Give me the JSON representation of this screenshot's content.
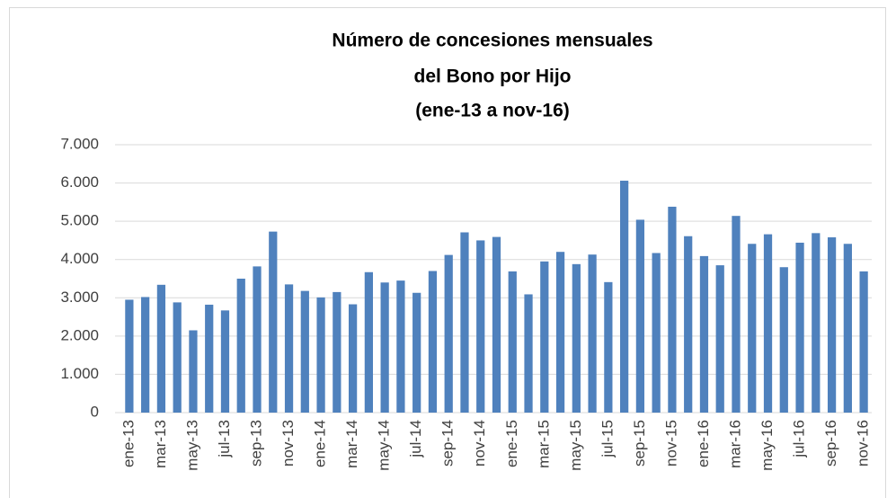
{
  "chart_data": {
    "type": "bar",
    "title": [
      "Número de concesiones mensuales",
      "del Bono por Hijo",
      "(ene-13 a nov-16)"
    ],
    "categories": [
      "ene-13",
      null,
      "mar-13",
      null,
      "may-13",
      null,
      "jul-13",
      null,
      "sep-13",
      null,
      "nov-13",
      null,
      "ene-14",
      null,
      "mar-14",
      null,
      "may-14",
      null,
      "jul-14",
      null,
      "sep-14",
      null,
      "nov-14",
      null,
      "ene-15",
      null,
      "mar-15",
      null,
      "may-15",
      null,
      "jul-15",
      null,
      "sep-15",
      null,
      "nov-15",
      null,
      "ene-16",
      null,
      "mar-16",
      null,
      "may-16",
      null,
      "jul-16",
      null,
      "sep-16",
      null,
      "nov-16"
    ],
    "values": [
      2950,
      3020,
      3340,
      2880,
      2150,
      2820,
      2670,
      3500,
      3820,
      4730,
      3350,
      3180,
      3010,
      3150,
      2830,
      3670,
      3400,
      3450,
      3130,
      3700,
      4120,
      4710,
      4500,
      4590,
      3690,
      3090,
      3950,
      4200,
      3880,
      4130,
      3410,
      6060,
      5040,
      4170,
      5380,
      4610,
      4090,
      3850,
      5140,
      4410,
      4660,
      3800,
      4440,
      4690,
      4580,
      4410,
      3690
    ],
    "color": "#4f81bd",
    "ylim": [
      0,
      7000
    ],
    "yticks": [
      0,
      {
        "value": 1000,
        "label": "1.000"
      },
      {
        "value": 2000,
        "label": "2.000"
      },
      {
        "value": 3000,
        "label": "3.000"
      },
      {
        "value": 4000,
        "label": "4.000"
      },
      {
        "value": 5000,
        "label": "5.000"
      },
      {
        "value": 6000,
        "label": "6.000"
      },
      {
        "value": 7000,
        "label": "7.000"
      }
    ],
    "grid": true
  }
}
